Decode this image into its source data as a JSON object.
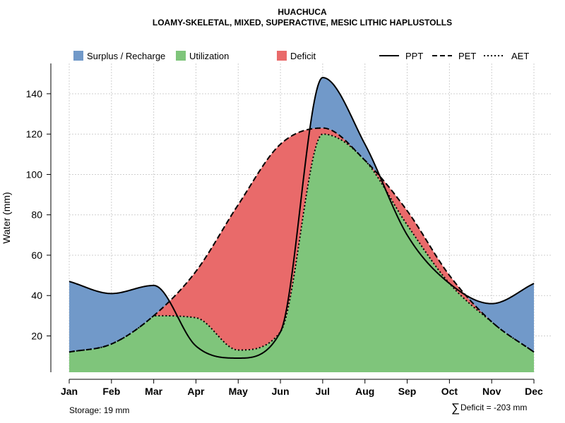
{
  "chart_data": {
    "type": "area",
    "title": "HUACHUCA",
    "subtitle": "LOAMY-SKELETAL, MIXED, SUPERACTIVE, MESIC LITHIC HAPLUSTOLLS",
    "xlabel": "",
    "ylabel": "Water (mm)",
    "categories": [
      "Jan",
      "Feb",
      "Mar",
      "Apr",
      "May",
      "Jun",
      "Jul",
      "Aug",
      "Sep",
      "Oct",
      "Nov",
      "Dec"
    ],
    "y_ticks": [
      20,
      40,
      60,
      80,
      100,
      120,
      140
    ],
    "ylim": [
      2,
      155
    ],
    "grid": true,
    "legend_position": "top",
    "series": [
      {
        "name": "PPT",
        "style": "solid",
        "values": [
          47,
          41,
          45,
          15,
          9,
          22,
          148,
          115,
          70,
          46,
          36,
          46
        ]
      },
      {
        "name": "PET",
        "style": "dashed",
        "values": [
          12,
          16,
          30,
          52,
          85,
          115,
          123,
          107,
          82,
          50,
          27,
          12
        ]
      },
      {
        "name": "AET",
        "style": "dotted",
        "values": [
          12,
          16,
          30,
          29,
          13,
          22,
          120,
          107,
          75,
          46,
          27,
          12
        ]
      }
    ],
    "fill_legend": [
      {
        "name": "Surplus / Recharge",
        "color": "#7199C9"
      },
      {
        "name": "Utilization",
        "color": "#7FC57B"
      },
      {
        "name": "Deficit",
        "color": "#E96A6A"
      }
    ],
    "annotations": {
      "storage": "Storage: 19 mm",
      "deficit_symbol": "∑",
      "deficit": "Deficit = -203 mm"
    }
  }
}
